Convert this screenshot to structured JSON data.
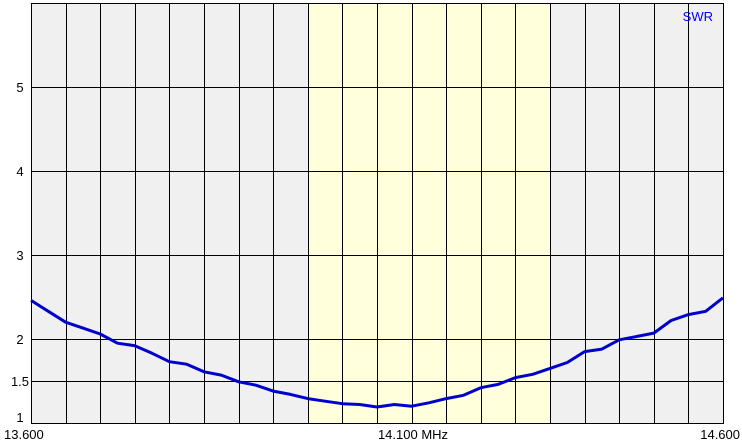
{
  "chart_data": {
    "type": "line",
    "title": "SWR",
    "xlabel": "",
    "ylabel": "",
    "xlim": [
      13.6,
      14.6
    ],
    "ylim": [
      1,
      6
    ],
    "x_tick_labels": [
      {
        "value": 13.6,
        "label": "13.600"
      },
      {
        "value": 14.1,
        "label": "14.100 MHz"
      },
      {
        "value": 14.6,
        "label": "14.600"
      }
    ],
    "y_ticks": [
      1,
      1.5,
      2,
      3,
      4,
      5
    ],
    "y_tick_labels": [
      "1",
      "1.5",
      "2",
      "3",
      "4",
      "5"
    ],
    "x_grid_step": 0.05,
    "grid": true,
    "highlight_band": [
      14.0,
      14.35
    ],
    "colors": {
      "line": "#0000cc",
      "plot_bg": "#f0f0f0",
      "band": "#ffffdc",
      "grid": "#000000",
      "title": "#0000ff"
    },
    "series": [
      {
        "x": [
          13.6,
          13.625,
          13.65,
          13.675,
          13.7,
          13.725,
          13.75,
          13.775,
          13.8,
          13.825,
          13.85,
          13.875,
          13.9,
          13.925,
          13.95,
          13.975,
          14.0,
          14.025,
          14.05,
          14.075,
          14.1,
          14.125,
          14.15,
          14.175,
          14.2,
          14.225,
          14.25,
          14.275,
          14.3,
          14.325,
          14.35,
          14.375,
          14.4,
          14.425,
          14.45,
          14.475,
          14.5,
          14.525,
          14.55,
          14.575,
          14.6
        ],
        "y": [
          2.46,
          2.33,
          2.2,
          2.13,
          2.06,
          1.95,
          1.92,
          1.83,
          1.73,
          1.7,
          1.61,
          1.57,
          1.49,
          1.45,
          1.38,
          1.34,
          1.29,
          1.26,
          1.23,
          1.22,
          1.19,
          1.22,
          1.2,
          1.24,
          1.29,
          1.33,
          1.42,
          1.46,
          1.54,
          1.58,
          1.65,
          1.72,
          1.85,
          1.88,
          1.99,
          2.03,
          2.07,
          2.22,
          2.29,
          2.33,
          2.49
        ]
      }
    ]
  }
}
